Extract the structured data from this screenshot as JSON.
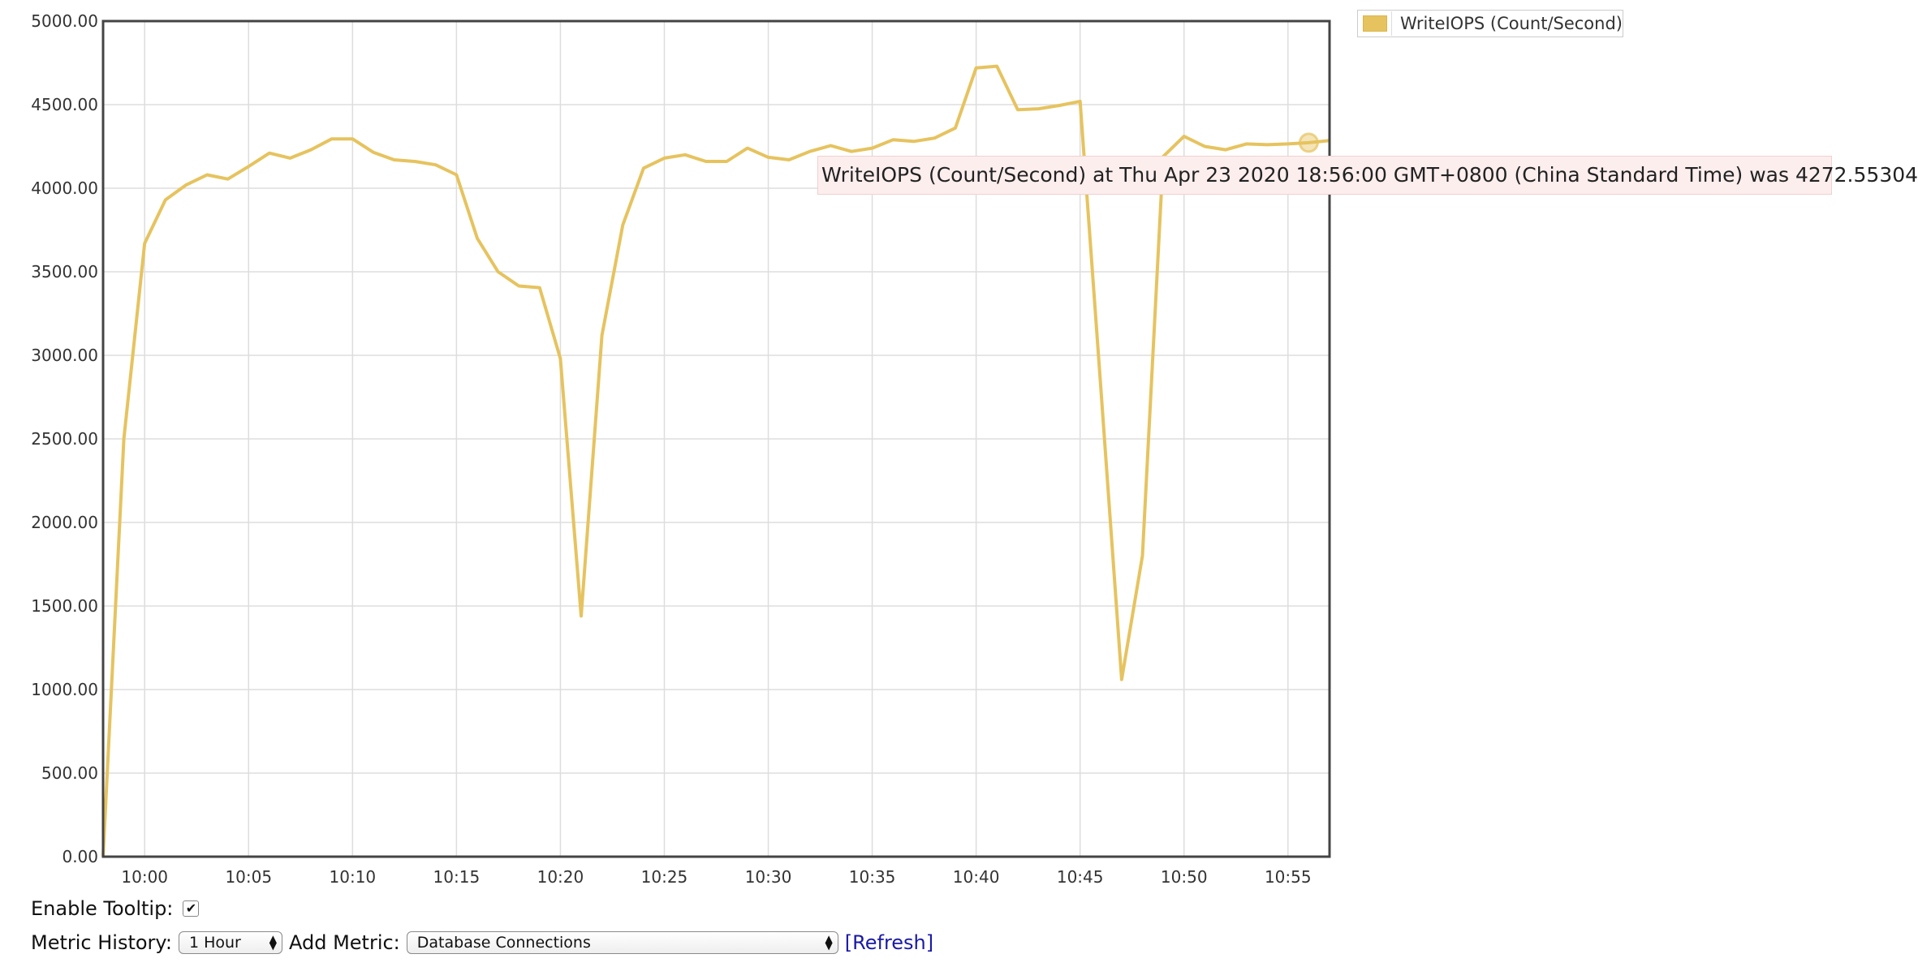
{
  "legend": {
    "label": "WriteIOPS (Count/Second)"
  },
  "tooltip": {
    "text": "WriteIOPS (Count/Second) at Thu Apr 23 2020 18:56:00 GMT+0800 (China Standard Time) was 4272.55304"
  },
  "controls": {
    "enable_tooltip_label": "Enable Tooltip:",
    "enable_tooltip_checked": true,
    "checkmark": "✔",
    "metric_history_label": "Metric History:",
    "metric_history_value": "1 Hour",
    "add_metric_label": "Add Metric:",
    "add_metric_value": "Database Connections",
    "refresh_label": "[Refresh]"
  },
  "colors": {
    "line": "#e6c35f",
    "frame": "#444444",
    "grid": "#dddddd",
    "tooltip_bg": "#fdeeee",
    "link": "#1a1aa6"
  },
  "chart_data": {
    "type": "line",
    "title": "",
    "xlabel": "",
    "ylabel": "",
    "ylim": [
      0,
      5000
    ],
    "xlim_minutes": [
      "09:58",
      "10:57"
    ],
    "yticks": [
      "0.00",
      "500.00",
      "1000.00",
      "1500.00",
      "2000.00",
      "2500.00",
      "3000.00",
      "3500.00",
      "4000.00",
      "4500.00",
      "5000.00"
    ],
    "xticks": [
      "10:00",
      "10:05",
      "10:10",
      "10:15",
      "10:20",
      "10:25",
      "10:30",
      "10:35",
      "10:40",
      "10:45",
      "10:50",
      "10:55"
    ],
    "grid": true,
    "legend_position": "top-right",
    "series": [
      {
        "name": "WriteIOPS (Count/Second)",
        "color": "#e6c35f",
        "x": [
          "09:58",
          "09:59",
          "10:00",
          "10:01",
          "10:02",
          "10:03",
          "10:04",
          "10:05",
          "10:06",
          "10:07",
          "10:08",
          "10:09",
          "10:10",
          "10:11",
          "10:12",
          "10:13",
          "10:14",
          "10:15",
          "10:16",
          "10:17",
          "10:18",
          "10:19",
          "10:20",
          "10:21",
          "10:22",
          "10:23",
          "10:24",
          "10:25",
          "10:26",
          "10:27",
          "10:28",
          "10:29",
          "10:30",
          "10:31",
          "10:32",
          "10:33",
          "10:34",
          "10:35",
          "10:36",
          "10:37",
          "10:38",
          "10:39",
          "10:40",
          "10:41",
          "10:42",
          "10:43",
          "10:44",
          "10:45",
          "10:46",
          "10:47",
          "10:48",
          "10:49",
          "10:50",
          "10:51",
          "10:52",
          "10:53",
          "10:54",
          "10:55",
          "10:56",
          "10:57"
        ],
        "values": [
          0,
          2500,
          3670,
          3930,
          4020,
          4080,
          4055,
          4130,
          4210,
          4180,
          4230,
          4295,
          4295,
          4215,
          4170,
          4160,
          4140,
          4080,
          3700,
          3500,
          3415,
          3405,
          2980,
          1440,
          3120,
          3780,
          4120,
          4180,
          4200,
          4160,
          4160,
          4240,
          4185,
          4170,
          4220,
          4255,
          4220,
          4240,
          4290,
          4280,
          4300,
          4360,
          4720,
          4730,
          4470,
          4475,
          4495,
          4520,
          2800,
          1060,
          1800,
          4190,
          4310,
          4250,
          4230,
          4265,
          4260,
          4265,
          4272.55,
          4285
        ]
      }
    ],
    "highlight_x": "10:56"
  }
}
